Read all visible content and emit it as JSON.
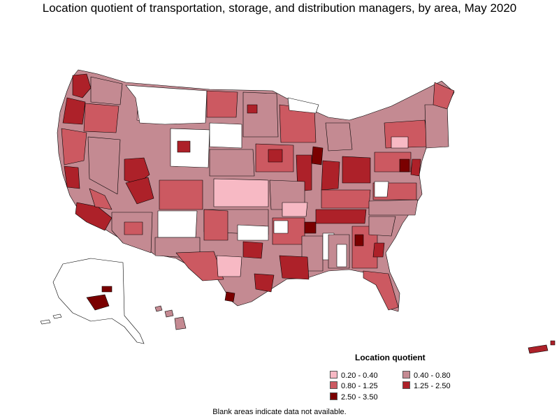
{
  "title": "Location quotient of transportation, storage, and distribution managers, by area, May 2020",
  "legend": {
    "title": "Location quotient",
    "items": [
      {
        "label": "0.20 - 0.40",
        "color": "#f7b9c4"
      },
      {
        "label": "0.40 - 0.80",
        "color": "#c48a92"
      },
      {
        "label": "0.80 - 1.25",
        "color": "#cc5961"
      },
      {
        "label": "1.25 - 2.50",
        "color": "#ad2129"
      },
      {
        "label": "2.50 - 3.50",
        "color": "#7a0000"
      }
    ]
  },
  "footnote": "Blank areas indicate data not available.",
  "colors": {
    "blank": "#ffffff",
    "border": "#000000"
  }
}
